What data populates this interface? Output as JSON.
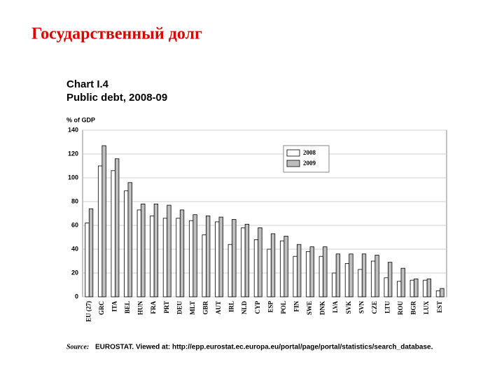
{
  "slide_title": "Государственный долг",
  "chart_data": {
    "type": "bar",
    "title": "Chart I.4",
    "subtitle": "Public debt, 2008-09",
    "y_label": "% of GDP",
    "source_label": "Source:",
    "source": "EUROSTAT. Viewed at: http://epp.eurostat.ec.europa.eu/portal/page/portal/statistics/search_database.",
    "categories": [
      "EU (27)",
      "GRC",
      "ITA",
      "BEL",
      "HUN",
      "FRA",
      "PRT",
      "DEU",
      "MLT",
      "GBR",
      "AUT",
      "IRL",
      "NLD",
      "CYP",
      "ESP",
      "POL",
      "FIN",
      "SWE",
      "DNK",
      "LVA",
      "SVK",
      "SVN",
      "CZE",
      "LTU",
      "ROU",
      "BGR",
      "LUX",
      "EST"
    ],
    "series": [
      {
        "name": "2008",
        "color": "#ffffff",
        "values": [
          62,
          110,
          106,
          89,
          73,
          68,
          66,
          66,
          64,
          52,
          63,
          44,
          58,
          48,
          40,
          47,
          34,
          38,
          34,
          20,
          28,
          23,
          30,
          16,
          13,
          14,
          14,
          5
        ]
      },
      {
        "name": "2009",
        "color": "#bdbdbd",
        "values": [
          74,
          127,
          116,
          96,
          78,
          78,
          77,
          73,
          69,
          68,
          67,
          65,
          61,
          58,
          53,
          51,
          44,
          42,
          42,
          36,
          36,
          36,
          35,
          29,
          24,
          15,
          15,
          7
        ]
      }
    ],
    "ylim": [
      0,
      140
    ],
    "yticks": [
      0,
      20,
      40,
      60,
      80,
      100,
      120,
      140
    ],
    "grid": true,
    "legend": "top-right"
  }
}
